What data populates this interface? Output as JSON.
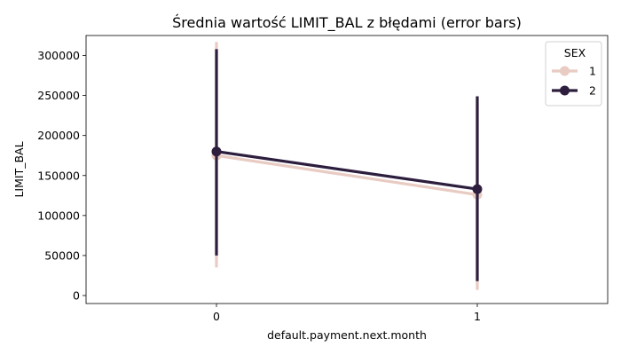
{
  "chart_data": {
    "type": "line",
    "title": "Średnia wartość LIMIT_BAL z błędami (error bars)",
    "xlabel": "default.payment.next.month",
    "ylabel": "LIMIT_BAL",
    "categories": [
      "0",
      "1"
    ],
    "ylim": [
      -10000,
      325000
    ],
    "yticks": [
      0,
      50000,
      100000,
      150000,
      200000,
      250000,
      300000
    ],
    "ytick_labels": [
      "0",
      "50000",
      "100000",
      "150000",
      "200000",
      "250000",
      "300000"
    ],
    "grid": false,
    "legend": {
      "title": "SEX",
      "position": "top-right"
    },
    "series": [
      {
        "name": "1",
        "color": "#e8cbc2",
        "values": [
          175000,
          126000
        ],
        "err_low": [
          35000,
          7000
        ],
        "err_high": [
          317000,
          240000
        ]
      },
      {
        "name": "2",
        "color": "#2d1e3e",
        "values": [
          180000,
          133000
        ],
        "err_low": [
          50000,
          18000
        ],
        "err_high": [
          308000,
          249000
        ]
      }
    ]
  }
}
